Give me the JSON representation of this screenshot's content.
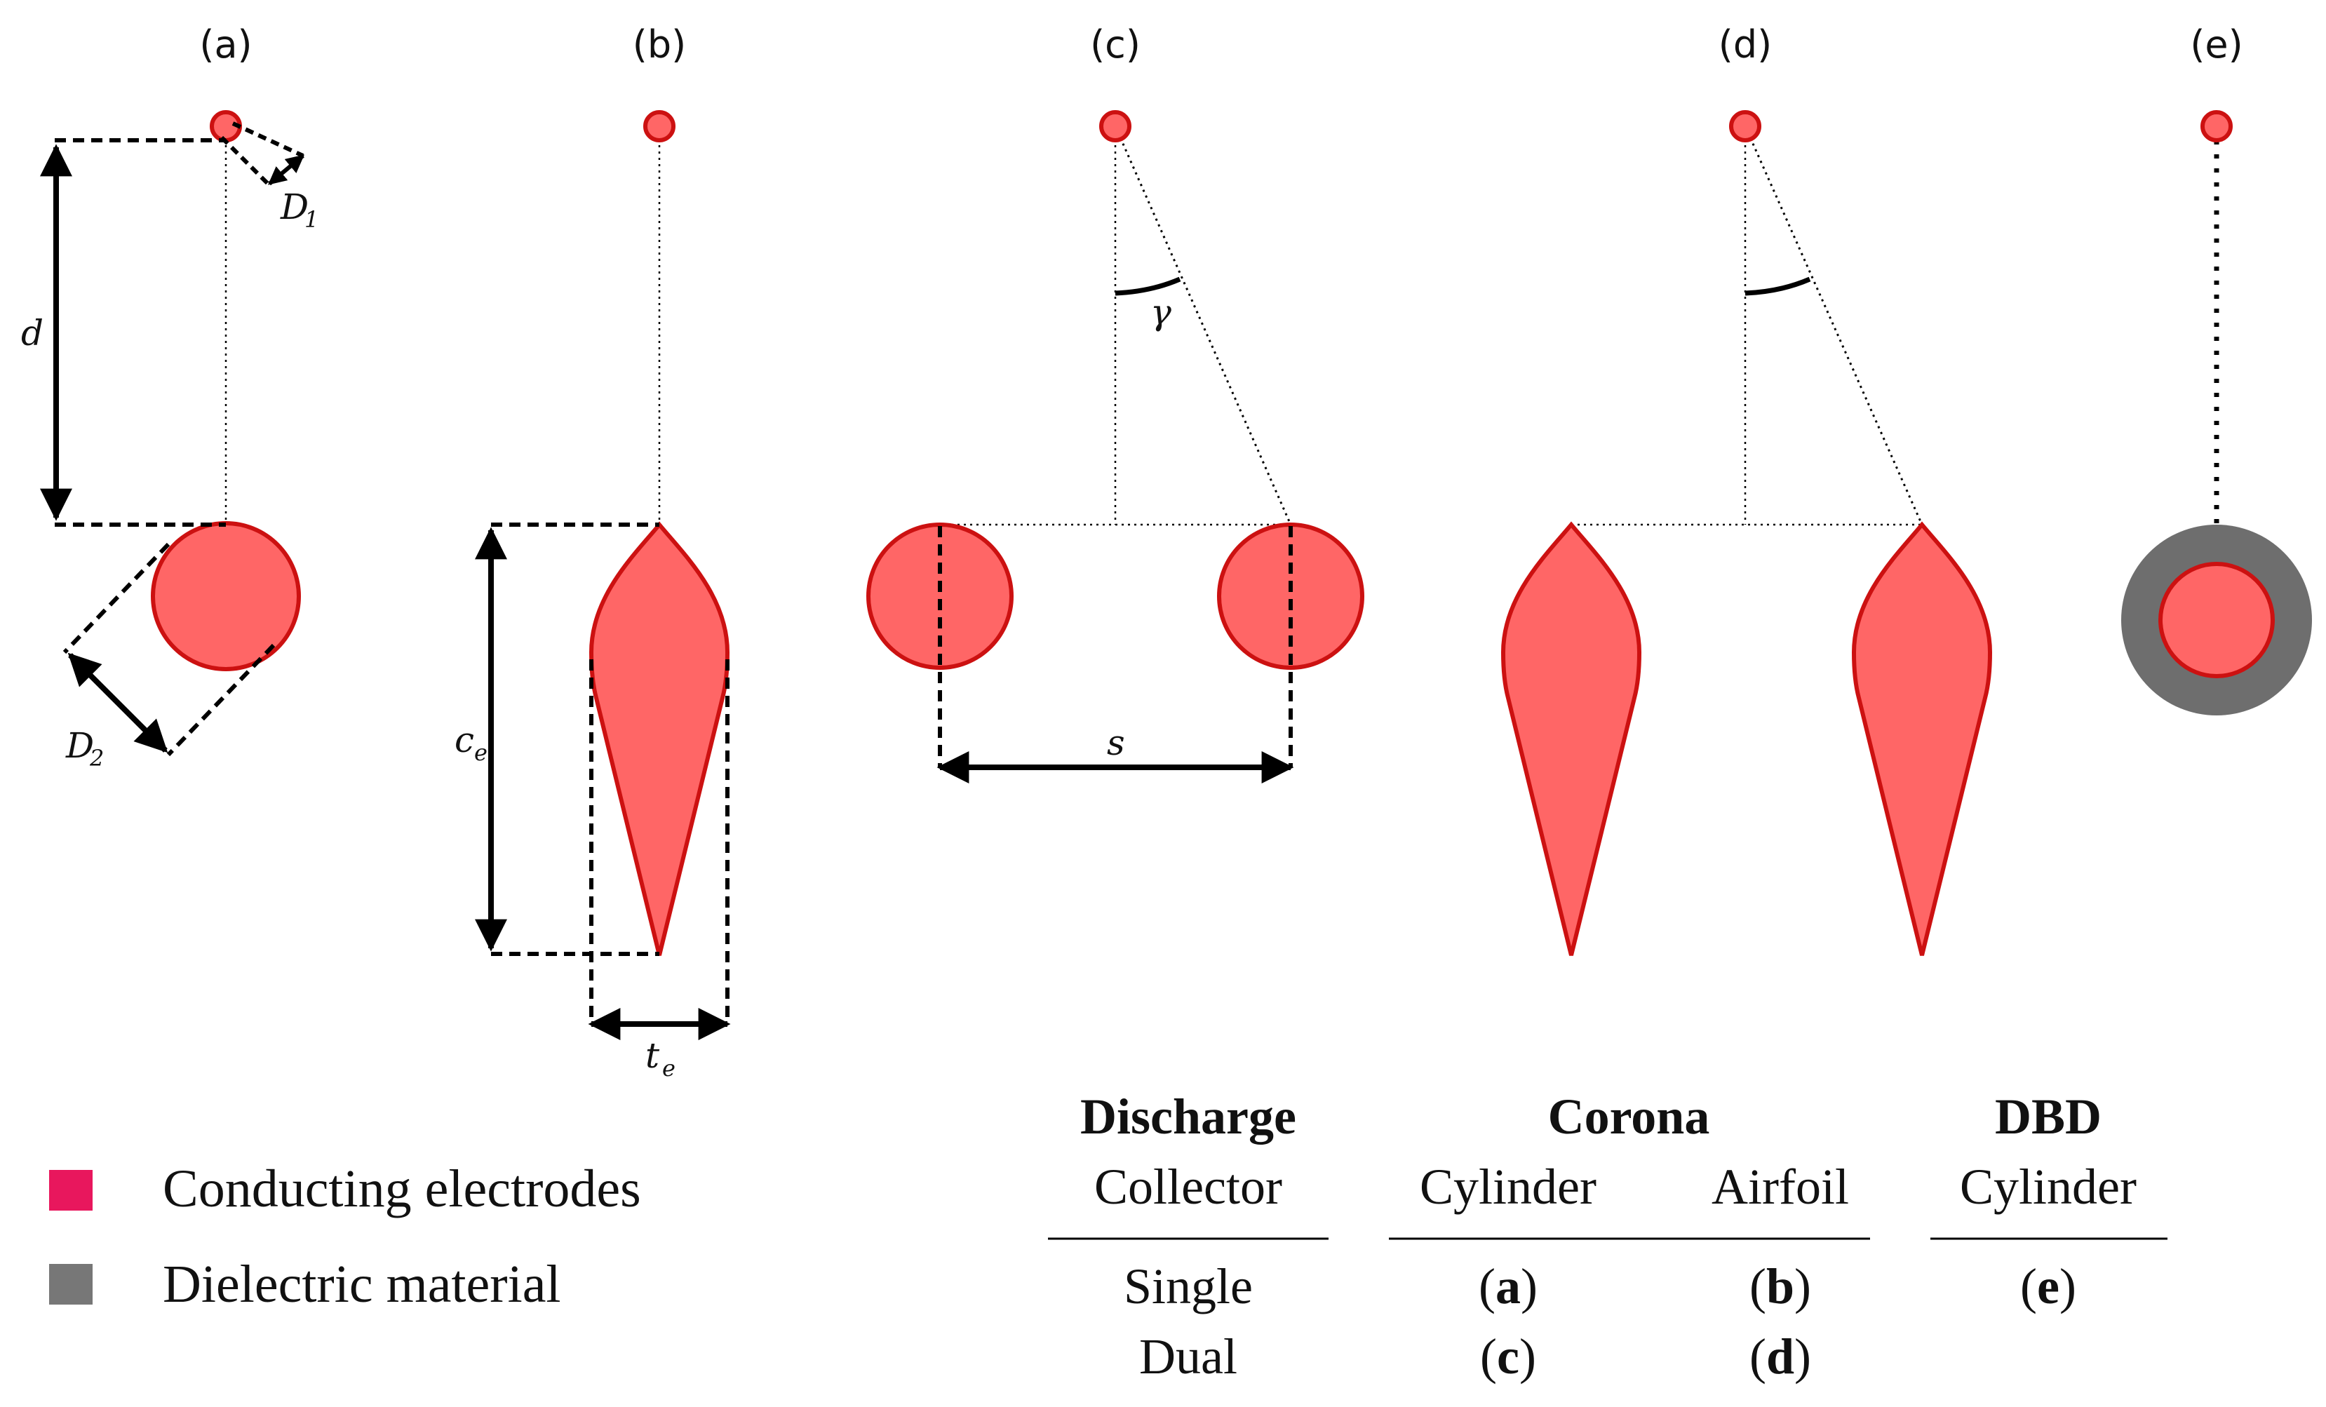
{
  "panels": {
    "a": {
      "label": "(a)"
    },
    "b": {
      "label": "(b)"
    },
    "c": {
      "label": "(c)"
    },
    "d": {
      "label": "(d)"
    },
    "e": {
      "label": "(e)"
    }
  },
  "symbols": {
    "d": "d",
    "D1": "D",
    "D1_sub": "1",
    "D2": "D",
    "D2_sub": "2",
    "ce": "c",
    "ce_sub": "e",
    "te": "t",
    "te_sub": "e",
    "s": "s",
    "gamma": "γ"
  },
  "legend": [
    {
      "label": "Conducting electrodes",
      "color": "#e8175d"
    },
    {
      "label": "Dielectric material",
      "color": "#777777"
    }
  ],
  "table": {
    "row_header_top": "Discharge",
    "row_header_bottom": "Collector",
    "groups": [
      {
        "name": "Corona",
        "columns": [
          "Cylinder",
          "Airfoil"
        ]
      },
      {
        "name": "DBD",
        "columns": [
          "Cylinder"
        ]
      }
    ],
    "rows": [
      {
        "label": "Single",
        "cells": [
          "a",
          "b",
          "e"
        ]
      },
      {
        "label": "Dual",
        "cells": [
          "c",
          "d",
          ""
        ]
      }
    ]
  },
  "colors": {
    "electrode_fill": "#ff6666",
    "electrode_stroke": "#cc1111",
    "dielectric": "#6e6e6e"
  }
}
